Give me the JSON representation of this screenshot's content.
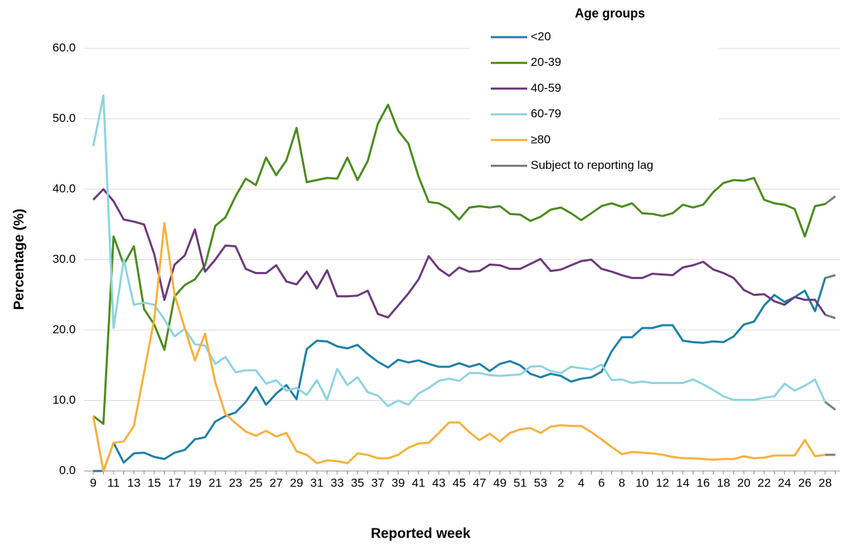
{
  "chart_data": {
    "type": "line",
    "x_label": "Reported week",
    "y_label": "Percentage (%)",
    "legend_title": "Age groups",
    "legend": "top-right",
    "grid": true,
    "categories": [
      "9",
      null,
      "11",
      null,
      "13",
      null,
      "15",
      null,
      "17",
      null,
      "19",
      null,
      "21",
      null,
      "23",
      null,
      "25",
      null,
      "27",
      null,
      "29",
      null,
      "31",
      null,
      "33",
      null,
      "35",
      null,
      "37",
      null,
      "39",
      null,
      "41",
      null,
      "43",
      null,
      "45",
      null,
      "47",
      null,
      "49",
      null,
      "51",
      null,
      "53",
      null,
      "2",
      null,
      "4",
      null,
      "6",
      null,
      "8",
      null,
      "10",
      null,
      "12",
      null,
      "14",
      null,
      "16",
      null,
      "18",
      null,
      "20",
      null,
      "22",
      null,
      "24",
      null,
      "26",
      null,
      "28",
      null
    ],
    "ylim": [
      0,
      60
    ],
    "yticks": [
      {
        "value": 0,
        "label": "0.0"
      },
      {
        "value": 10,
        "label": "10.0"
      },
      {
        "value": 20,
        "label": "20.0"
      },
      {
        "value": 30,
        "label": "30.0"
      },
      {
        "value": 40,
        "label": "40.0"
      },
      {
        "value": 50,
        "label": "50.0"
      },
      {
        "value": 60,
        "label": "60.0"
      }
    ],
    "lag": {
      "name": "Subject to reporting lag",
      "color": "#7f7f7f",
      "from_category": "28"
    },
    "series": [
      {
        "name": "<20",
        "color": "#1f7fa6",
        "values": [
          0,
          0,
          4.0,
          1.2,
          2.5,
          2.6,
          2.0,
          1.7,
          2.6,
          3.0,
          4.5,
          4.8,
          7.0,
          7.8,
          8.3,
          9.8,
          11.9,
          9.4,
          11.0,
          12.2,
          10.2,
          17.3,
          18.5,
          18.4,
          17.7,
          17.4,
          17.9,
          16.6,
          15.5,
          14.7,
          15.8,
          15.4,
          15.7,
          15.2,
          14.8,
          14.8,
          15.3,
          14.8,
          15.2,
          14.2,
          15.2,
          15.6,
          15.0,
          13.8,
          13.3,
          13.8,
          13.5,
          12.7,
          13.1,
          13.3,
          14.1,
          17.0,
          19.0,
          19.0,
          20.3,
          20.3,
          20.7,
          20.7,
          18.5,
          18.3,
          18.2,
          18.4,
          18.3,
          19.1,
          20.8,
          21.2,
          23.5,
          25.0,
          24.0,
          24.7,
          25.6,
          22.7,
          27.4,
          27.8
        ]
      },
      {
        "name": "20-39",
        "color": "#4b8b1e",
        "values": [
          7.8,
          6.7,
          33.3,
          29.3,
          31.9,
          23.0,
          20.8,
          17.2,
          24.8,
          26.4,
          27.2,
          29.2,
          34.8,
          36.0,
          39.0,
          41.5,
          40.6,
          44.5,
          42.0,
          44.1,
          48.7,
          41.0,
          41.3,
          41.6,
          41.5,
          44.5,
          41.3,
          44.0,
          49.3,
          52.0,
          48.3,
          46.5,
          41.8,
          38.2,
          38.0,
          37.2,
          35.7,
          37.4,
          37.6,
          37.4,
          37.6,
          36.5,
          36.4,
          35.5,
          36.1,
          37.1,
          37.4,
          36.6,
          35.6,
          36.6,
          37.6,
          38.0,
          37.5,
          38.0,
          36.6,
          36.5,
          36.2,
          36.6,
          37.8,
          37.4,
          37.8,
          39.6,
          40.9,
          41.3,
          41.2,
          41.6,
          38.5,
          38.0,
          37.8,
          37.2,
          33.3,
          37.6,
          37.9,
          39.0
        ]
      },
      {
        "name": "40-59",
        "color": "#6b3a7d",
        "values": [
          38.5,
          40.0,
          38.3,
          35.7,
          35.4,
          35.0,
          30.8,
          24.3,
          29.3,
          30.6,
          34.3,
          28.3,
          30.0,
          32.0,
          31.9,
          28.7,
          28.1,
          28.1,
          29.2,
          26.9,
          26.5,
          28.3,
          25.9,
          28.5,
          24.8,
          24.8,
          24.9,
          25.6,
          22.3,
          21.8,
          23.5,
          25.2,
          27.2,
          30.5,
          28.7,
          27.7,
          28.9,
          28.3,
          28.4,
          29.3,
          29.2,
          28.7,
          28.7,
          29.4,
          30.1,
          28.4,
          28.6,
          29.2,
          29.8,
          30.0,
          28.7,
          28.3,
          27.8,
          27.4,
          27.4,
          28.0,
          27.9,
          27.8,
          28.9,
          29.2,
          29.7,
          28.6,
          28.1,
          27.4,
          25.7,
          25.0,
          25.1,
          24.1,
          23.6,
          24.7,
          24.3,
          24.3,
          22.2,
          21.7
        ]
      },
      {
        "name": "60-79",
        "color": "#8fd3e0",
        "values": [
          46.1,
          53.3,
          20.3,
          30.0,
          23.6,
          23.9,
          23.6,
          21.5,
          19.1,
          20.2,
          18.0,
          17.8,
          15.2,
          16.2,
          14.0,
          14.3,
          14.3,
          12.4,
          12.9,
          11.4,
          11.8,
          10.8,
          12.9,
          10.1,
          14.5,
          12.2,
          13.3,
          11.2,
          10.7,
          9.2,
          10.0,
          9.4,
          11.0,
          11.8,
          12.8,
          13.1,
          12.8,
          13.9,
          13.9,
          13.6,
          13.5,
          13.6,
          13.7,
          14.8,
          14.9,
          14.2,
          13.9,
          14.8,
          14.6,
          14.4,
          15.1,
          12.9,
          13.0,
          12.5,
          12.7,
          12.5,
          12.5,
          12.5,
          12.5,
          13.0,
          12.3,
          11.5,
          10.6,
          10.1,
          10.1,
          10.1,
          10.4,
          10.6,
          12.4,
          11.4,
          12.1,
          13.0,
          9.8,
          8.7
        ]
      },
      {
        "name": "≥80",
        "color": "#f6b13c",
        "values": [
          7.8,
          0,
          4.0,
          4.2,
          6.4,
          14.0,
          21.5,
          35.2,
          25.0,
          20.3,
          15.7,
          19.5,
          12.6,
          8.1,
          6.8,
          5.6,
          5.0,
          5.7,
          4.9,
          5.4,
          2.8,
          2.3,
          1.1,
          1.5,
          1.4,
          1.1,
          2.5,
          2.3,
          1.8,
          1.8,
          2.3,
          3.3,
          3.9,
          4.0,
          5.4,
          6.9,
          6.9,
          5.5,
          4.4,
          5.3,
          4.2,
          5.4,
          5.9,
          6.1,
          5.4,
          6.3,
          6.5,
          6.4,
          6.4,
          5.5,
          4.5,
          3.4,
          2.4,
          2.7,
          2.6,
          2.5,
          2.3,
          2.0,
          1.8,
          1.8,
          1.7,
          1.6,
          1.7,
          1.7,
          2.1,
          1.8,
          1.9,
          2.2,
          2.2,
          2.2,
          4.4,
          2.1,
          2.3,
          2.3
        ]
      }
    ]
  }
}
